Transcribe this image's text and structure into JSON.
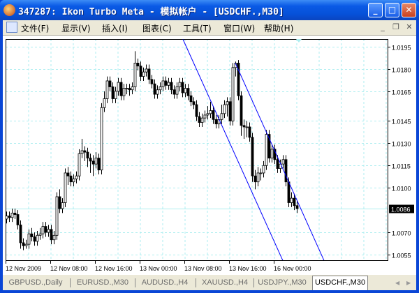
{
  "window": {
    "title": "347287: Ikon Turbo Meta - 模拟帐户 - [USDCHF.,M30]",
    "minimize": "_",
    "maximize": "□",
    "close": "✕"
  },
  "menu": [
    "文件(F)",
    "显示(V)",
    "插入(I)",
    "图表(C)",
    "工具(T)",
    "窗口(W)",
    "帮助(H)"
  ],
  "mdi": {
    "minimize": "_",
    "restore": "❐",
    "close": "✕"
  },
  "chart_data": {
    "type": "candlestick",
    "symbol": "USDCHF.",
    "timeframe": "M30",
    "current_price": "1.0086",
    "current_price_value": 1.0086,
    "ylim": [
      1.005,
      1.02
    ],
    "y_ticks": [
      "1.0195",
      "1.0180",
      "1.0165",
      "1.0145",
      "1.0130",
      "1.0115",
      "1.0100",
      "1.0070",
      "1.0055"
    ],
    "x_ticks": [
      {
        "bar": 0,
        "label": "12 Nov 2009"
      },
      {
        "bar": 16,
        "label": "12 Nov 08:00"
      },
      {
        "bar": 32,
        "label": "12 Nov 16:00"
      },
      {
        "bar": 48,
        "label": "13 Nov 00:00"
      },
      {
        "bar": 64,
        "label": "13 Nov 08:00"
      },
      {
        "bar": 80,
        "label": "13 Nov 16:00"
      },
      {
        "bar": 96,
        "label": "16 Nov 00:00"
      }
    ],
    "grid": true,
    "grid_color": "#aeeef0",
    "bull_fill": "#ffffff",
    "bear_fill": "#000000",
    "channel_color": "#0000ff",
    "channel_lines": [
      {
        "from": [
          63.25,
          1.02
        ],
        "to": [
          99,
          1.0051
        ]
      },
      {
        "from": [
          82,
          1.0184
        ],
        "to": [
          114,
          1.005
        ]
      }
    ],
    "ohlc": [
      [
        1.0079,
        1.0084,
        1.0076,
        1.0081
      ],
      [
        1.0081,
        1.0084,
        1.0077,
        1.008
      ],
      [
        1.008,
        1.0086,
        1.0077,
        1.0083
      ],
      [
        1.0083,
        1.0086,
        1.0079,
        1.0082
      ],
      [
        1.0082,
        1.0085,
        1.0072,
        1.0075
      ],
      [
        1.0075,
        1.0078,
        1.0059,
        1.0063
      ],
      [
        1.0063,
        1.0066,
        1.0058,
        1.0061
      ],
      [
        1.0061,
        1.0065,
        1.0059,
        1.0062
      ],
      [
        1.0062,
        1.0072,
        1.0059,
        1.0069
      ],
      [
        1.0069,
        1.0073,
        1.0064,
        1.0067
      ],
      [
        1.0067,
        1.007,
        1.0061,
        1.0064
      ],
      [
        1.0064,
        1.0071,
        1.0061,
        1.0068
      ],
      [
        1.0068,
        1.0073,
        1.0065,
        1.0069
      ],
      [
        1.0069,
        1.0077,
        1.0066,
        1.0074
      ],
      [
        1.0074,
        1.0077,
        1.0067,
        1.007
      ],
      [
        1.007,
        1.0075,
        1.0067,
        1.0072
      ],
      [
        1.0072,
        1.0075,
        1.0062,
        1.0065
      ],
      [
        1.0065,
        1.0071,
        1.0062,
        1.0068
      ],
      [
        1.0068,
        1.0097,
        1.0065,
        1.0094
      ],
      [
        1.0094,
        1.0099,
        1.0083,
        1.0086
      ],
      [
        1.0086,
        1.0093,
        1.0083,
        1.009
      ],
      [
        1.009,
        1.0113,
        1.0087,
        1.011
      ],
      [
        1.011,
        1.0114,
        1.0102,
        1.0108
      ],
      [
        1.0108,
        1.0111,
        1.0101,
        1.0104
      ],
      [
        1.0104,
        1.0109,
        1.0101,
        1.0106
      ],
      [
        1.0106,
        1.0111,
        1.0103,
        1.0108
      ],
      [
        1.0108,
        1.0126,
        1.0105,
        1.0123
      ],
      [
        1.0123,
        1.0133,
        1.012,
        1.0125
      ],
      [
        1.0125,
        1.0128,
        1.0118,
        1.0124
      ],
      [
        1.0124,
        1.0127,
        1.0114,
        1.012
      ],
      [
        1.012,
        1.0123,
        1.011,
        1.0118
      ],
      [
        1.0118,
        1.0122,
        1.0108,
        1.0116
      ],
      [
        1.0116,
        1.0124,
        1.0113,
        1.012
      ],
      [
        1.012,
        1.0123,
        1.0109,
        1.0112
      ],
      [
        1.0112,
        1.0157,
        1.0109,
        1.0154
      ],
      [
        1.0154,
        1.0165,
        1.0151,
        1.016
      ],
      [
        1.016,
        1.0175,
        1.0157,
        1.0172
      ],
      [
        1.0172,
        1.0175,
        1.0165,
        1.0168
      ],
      [
        1.0168,
        1.0171,
        1.0157,
        1.016
      ],
      [
        1.016,
        1.0168,
        1.0157,
        1.0165
      ],
      [
        1.0165,
        1.0174,
        1.0162,
        1.0171
      ],
      [
        1.0171,
        1.0174,
        1.0159,
        1.0162
      ],
      [
        1.0162,
        1.017,
        1.0159,
        1.0167
      ],
      [
        1.0167,
        1.017,
        1.0163,
        1.0167
      ],
      [
        1.0167,
        1.017,
        1.0162,
        1.0166
      ],
      [
        1.0166,
        1.0171,
        1.0163,
        1.0168
      ],
      [
        1.0168,
        1.0192,
        1.0165,
        1.0184
      ],
      [
        1.0184,
        1.0187,
        1.0179,
        1.0182
      ],
      [
        1.0182,
        1.0185,
        1.0172,
        1.0175
      ],
      [
        1.0175,
        1.0181,
        1.0172,
        1.0178
      ],
      [
        1.0178,
        1.0183,
        1.0175,
        1.018
      ],
      [
        1.018,
        1.0183,
        1.017,
        1.0173
      ],
      [
        1.0173,
        1.0176,
        1.0167,
        1.017
      ],
      [
        1.017,
        1.0173,
        1.016,
        1.0163
      ],
      [
        1.0163,
        1.0169,
        1.016,
        1.0166
      ],
      [
        1.0166,
        1.0171,
        1.0163,
        1.0168
      ],
      [
        1.0168,
        1.0175,
        1.0165,
        1.0172
      ],
      [
        1.0172,
        1.0175,
        1.0166,
        1.0169
      ],
      [
        1.0169,
        1.0174,
        1.0166,
        1.0171
      ],
      [
        1.0171,
        1.0174,
        1.0163,
        1.0166
      ],
      [
        1.0166,
        1.0169,
        1.016,
        1.0163
      ],
      [
        1.0163,
        1.0171,
        1.016,
        1.0168
      ],
      [
        1.0168,
        1.0174,
        1.0165,
        1.0171
      ],
      [
        1.0171,
        1.0174,
        1.0161,
        1.0164
      ],
      [
        1.0164,
        1.017,
        1.0161,
        1.0167
      ],
      [
        1.0167,
        1.017,
        1.0159,
        1.0162
      ],
      [
        1.0162,
        1.0165,
        1.0155,
        1.0158
      ],
      [
        1.0158,
        1.0161,
        1.0153,
        1.0156
      ],
      [
        1.0156,
        1.0159,
        1.0145,
        1.0148
      ],
      [
        1.0148,
        1.0151,
        1.0141,
        1.0144
      ],
      [
        1.0144,
        1.015,
        1.0141,
        1.0147
      ],
      [
        1.0147,
        1.0152,
        1.0144,
        1.0149
      ],
      [
        1.0149,
        1.0155,
        1.0146,
        1.015
      ],
      [
        1.015,
        1.0158,
        1.0147,
        1.0152
      ],
      [
        1.0152,
        1.0155,
        1.0143,
        1.0146
      ],
      [
        1.0146,
        1.0149,
        1.014,
        1.0143
      ],
      [
        1.0143,
        1.0149,
        1.014,
        1.0146
      ],
      [
        1.0146,
        1.0156,
        1.0143,
        1.015
      ],
      [
        1.015,
        1.0159,
        1.0147,
        1.0156
      ],
      [
        1.0156,
        1.0161,
        1.0148,
        1.0158
      ],
      [
        1.0158,
        1.0161,
        1.0142,
        1.0145
      ],
      [
        1.0145,
        1.0184,
        1.0142,
        1.0181
      ],
      [
        1.0181,
        1.0185,
        1.0175,
        1.0184
      ],
      [
        1.0184,
        1.0186,
        1.0159,
        1.0162
      ],
      [
        1.0162,
        1.0165,
        1.0135,
        1.0142
      ],
      [
        1.0142,
        1.0146,
        1.0133,
        1.0141
      ],
      [
        1.0141,
        1.0145,
        1.0134,
        1.0141
      ],
      [
        1.0141,
        1.0144,
        1.0131,
        1.0134
      ],
      [
        1.0134,
        1.0137,
        1.0104,
        1.0108
      ],
      [
        1.0108,
        1.0112,
        1.0099,
        1.0104
      ],
      [
        1.0104,
        1.0114,
        1.0101,
        1.011
      ],
      [
        1.011,
        1.0113,
        1.0105,
        1.011
      ],
      [
        1.011,
        1.0118,
        1.0107,
        1.0115
      ],
      [
        1.0115,
        1.0139,
        1.0112,
        1.0136
      ],
      [
        1.0136,
        1.0139,
        1.0117,
        1.012
      ],
      [
        1.012,
        1.0129,
        1.0117,
        1.0126
      ],
      [
        1.0126,
        1.0129,
        1.0116,
        1.0119
      ],
      [
        1.0119,
        1.0122,
        1.011,
        1.0113
      ],
      [
        1.0113,
        1.0119,
        1.011,
        1.0116
      ],
      [
        1.0116,
        1.0122,
        1.0113,
        1.0119
      ],
      [
        1.0119,
        1.0122,
        1.0101,
        1.0104
      ],
      [
        1.0104,
        1.0107,
        1.0087,
        1.009
      ],
      [
        1.009,
        1.0097,
        1.0087,
        1.0093
      ],
      [
        1.0093,
        1.0096,
        1.0085,
        1.0088
      ],
      [
        1.0088,
        1.0091,
        1.0083,
        1.0086
      ]
    ]
  },
  "tabs": [
    {
      "label": "GBPUSD.,Daily"
    },
    {
      "label": "EURUSD.,M30"
    },
    {
      "label": "AUDUSD.,H4"
    },
    {
      "label": "XAUUSD.,H4"
    },
    {
      "label": "USDJPY.,M30"
    },
    {
      "label": "USDCHF.,M30",
      "active": true
    }
  ],
  "tab_scroll": {
    "left": "◀",
    "right": "▶"
  }
}
